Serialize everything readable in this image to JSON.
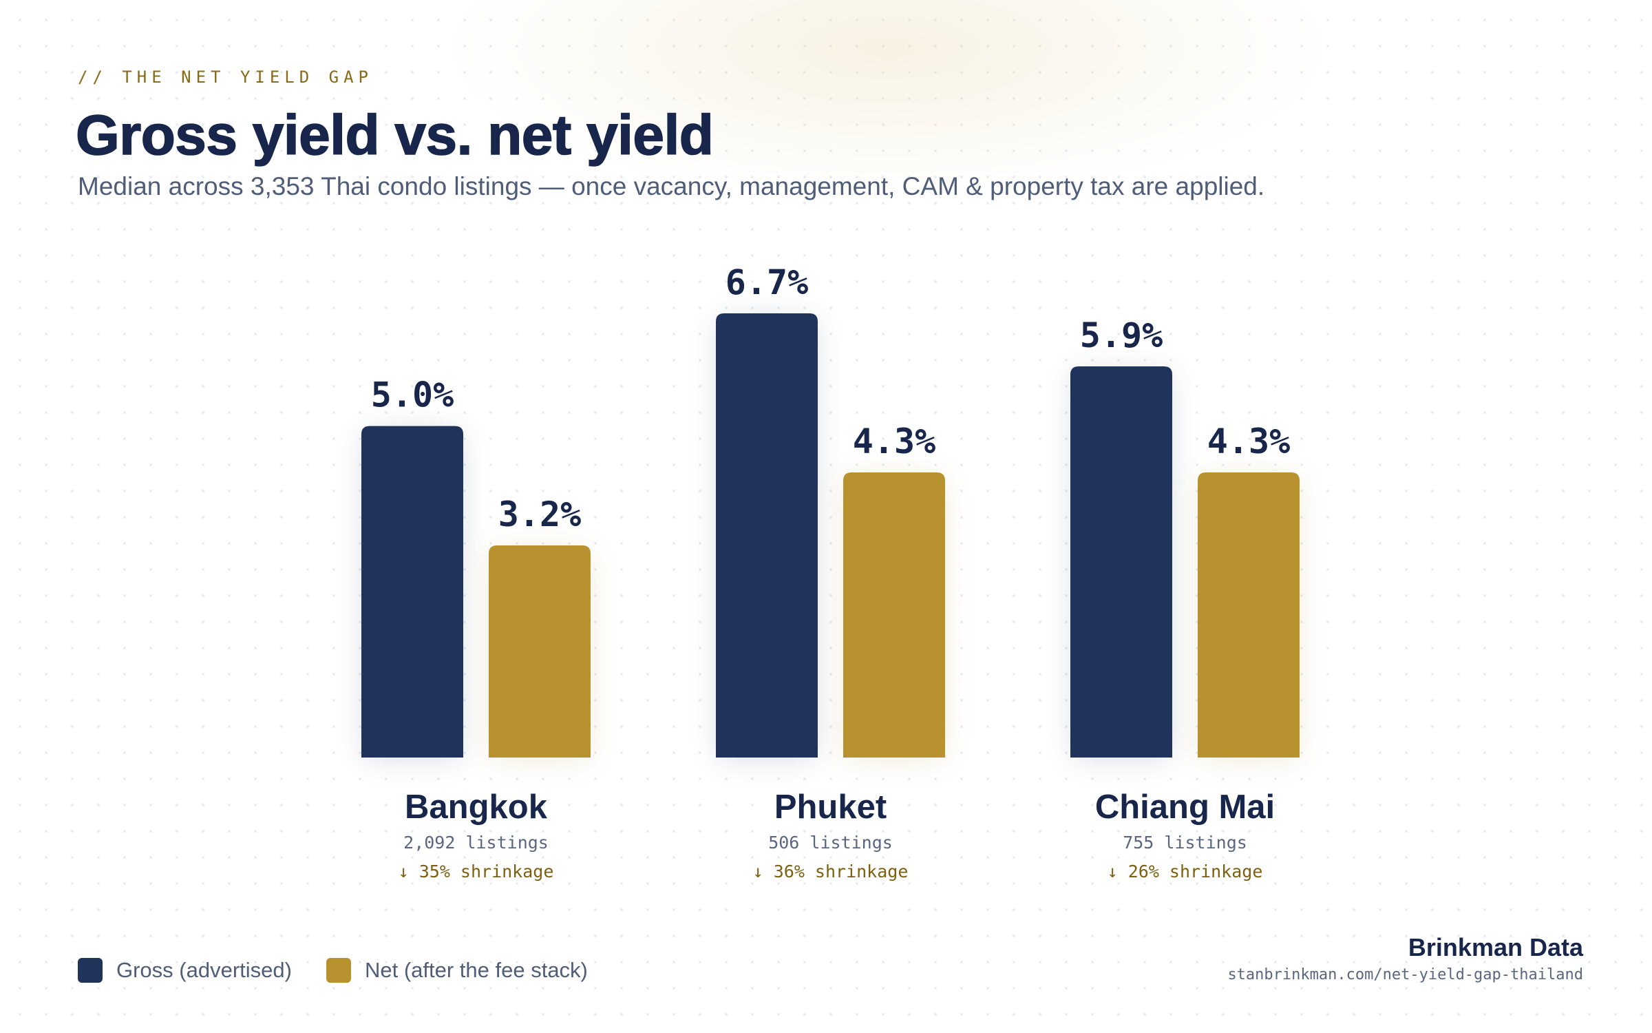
{
  "header": {
    "eyebrow": "// THE NET YIELD GAP",
    "title": "Gross yield vs. net yield",
    "subtitle": "Median across 3,353 Thai condo listings — once vacancy, management, CAM & property tax are applied."
  },
  "colors": {
    "gross": "#20335a",
    "net": "#b8922f",
    "text_dark": "#17264a",
    "accent": "#8a6a17"
  },
  "chart_data": {
    "type": "bar",
    "title": "Gross yield vs. net yield",
    "subtitle": "Median across 3,353 Thai condo listings — once vacancy, management, CAM & property tax are applied.",
    "categories": [
      "Bangkok",
      "Phuket",
      "Chiang Mai"
    ],
    "series": [
      {
        "name": "Gross (advertised)",
        "values": [
          5.0,
          6.7,
          5.9
        ],
        "labels": [
          "5.0%",
          "6.7%",
          "5.9%"
        ],
        "color": "#20335a"
      },
      {
        "name": "Net (after the fee stack)",
        "values": [
          3.2,
          4.3,
          4.3
        ],
        "labels": [
          "3.2%",
          "4.3%",
          "4.3%"
        ],
        "color": "#b8922f"
      }
    ],
    "listings": [
      "2,092 listings",
      "506 listings",
      "755 listings"
    ],
    "shrinkage": [
      "↓ 35% shrinkage",
      "↓ 36% shrinkage",
      "↓ 26% shrinkage"
    ],
    "ylim": [
      0,
      6.7
    ],
    "grid": false,
    "legend_position": "bottom-left"
  },
  "legend": {
    "gross_label": "Gross (advertised)",
    "net_label": "Net (after the fee stack)"
  },
  "brand": {
    "name": "Brinkman Data",
    "url": "stanbrinkman.com/net-yield-gap-thailand"
  }
}
